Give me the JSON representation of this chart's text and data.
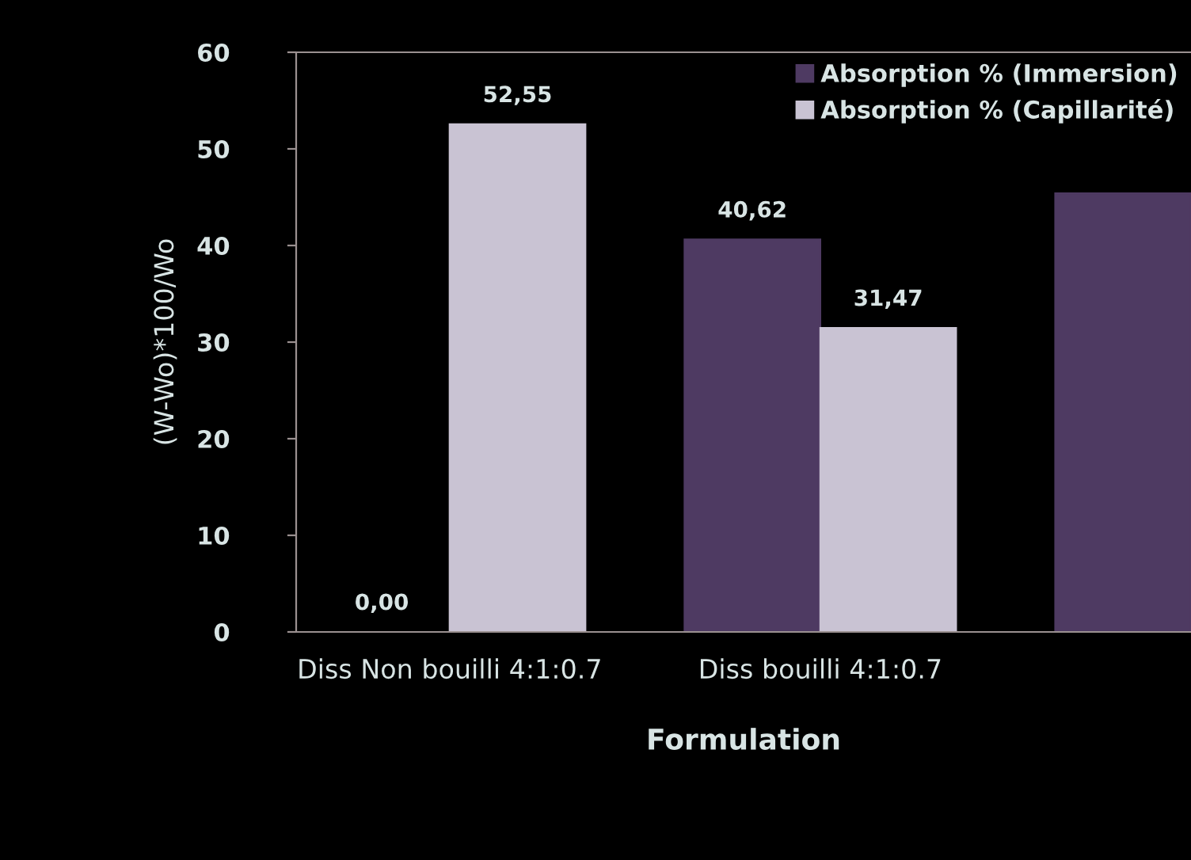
{
  "chart_data": {
    "type": "bar",
    "xlabel": "Formulation",
    "ylabel": "(W-Wo)*100/Wo",
    "categories": [
      "Diss Non bouilli 4:1:0.7",
      "Diss bouilli 4:1:0.7",
      null
    ],
    "series": [
      {
        "name": "Absorption % (Immersion)",
        "color": "#4e3a62",
        "values": [
          0.0,
          40.62,
          45.4
        ],
        "value_labels": [
          "0,00",
          "40,62",
          null
        ]
      },
      {
        "name": "Absorption % (Capillarité)",
        "color": "#c9c3d3",
        "values": [
          52.55,
          31.47,
          null
        ],
        "value_labels": [
          "52,55",
          "31,47",
          null
        ]
      }
    ],
    "ylim": [
      0,
      60
    ],
    "yticks": [
      0,
      10,
      20,
      30,
      40,
      50,
      60
    ],
    "grid": false,
    "legend": "top right"
  }
}
